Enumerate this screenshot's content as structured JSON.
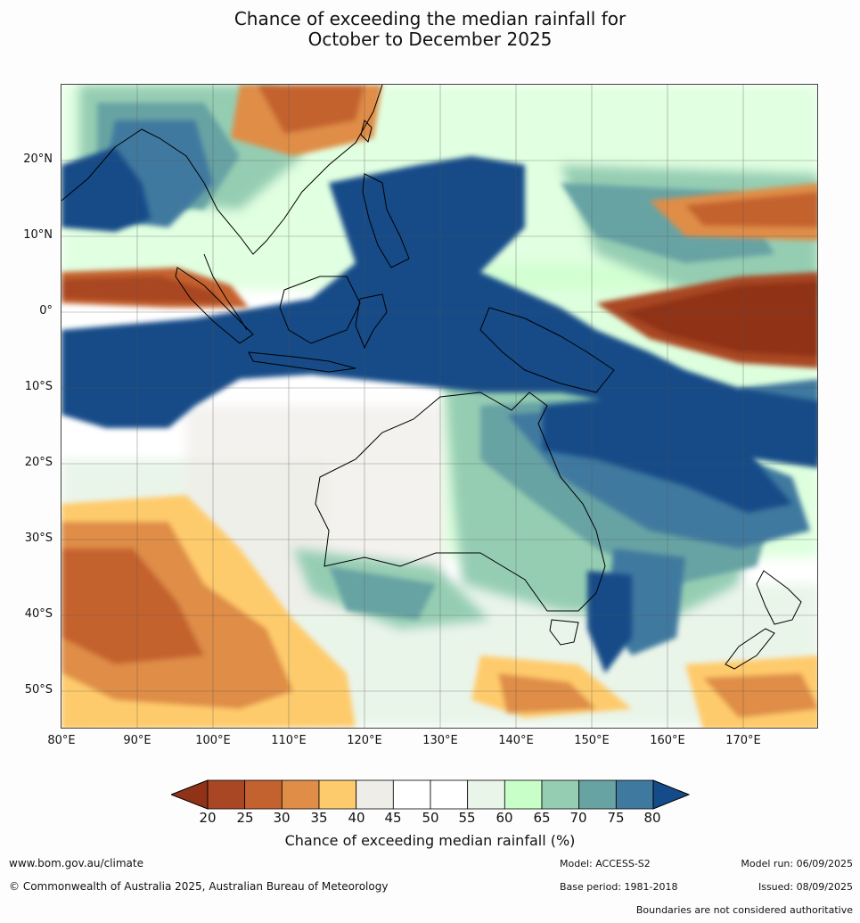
{
  "title_line1": "Chance of exceeding the median rainfall for",
  "title_line2": "October to December 2025",
  "lat_labels": [
    "20°N",
    "10°N",
    "0°",
    "10°S",
    "20°S",
    "30°S",
    "40°S",
    "50°S"
  ],
  "lon_labels": [
    "80°E",
    "90°E",
    "100°E",
    "110°E",
    "120°E",
    "130°E",
    "140°E",
    "150°E",
    "160°E",
    "170°E"
  ],
  "colorbar": {
    "label": "Chance of exceeding median rainfall (%)",
    "ticks": [
      "20",
      "25",
      "30",
      "35",
      "40",
      "45",
      "50",
      "55",
      "60",
      "65",
      "70",
      "75",
      "80"
    ],
    "colors": [
      "#8f3218",
      "#a94724",
      "#c4622f",
      "#df8d47",
      "#fecb6c",
      "#efede8",
      "#ffffff",
      "#ffffff",
      "#eaf5ea",
      "#c8ffc8",
      "#95cdb2",
      "#68a3a4",
      "#40799f",
      "#134c88"
    ]
  },
  "footer": {
    "website": "www.bom.gov.au/climate",
    "copyright": "© Commonwealth of Australia 2025, Australian Bureau of Meteorology",
    "model": "Model: ACCESS-S2",
    "base_period": "Base period: 1981-2018",
    "model_run": "Model run: 06/09/2025",
    "issued": "Issued: 08/09/2025",
    "disclaimer": "Boundaries are not considered authoritative"
  }
}
